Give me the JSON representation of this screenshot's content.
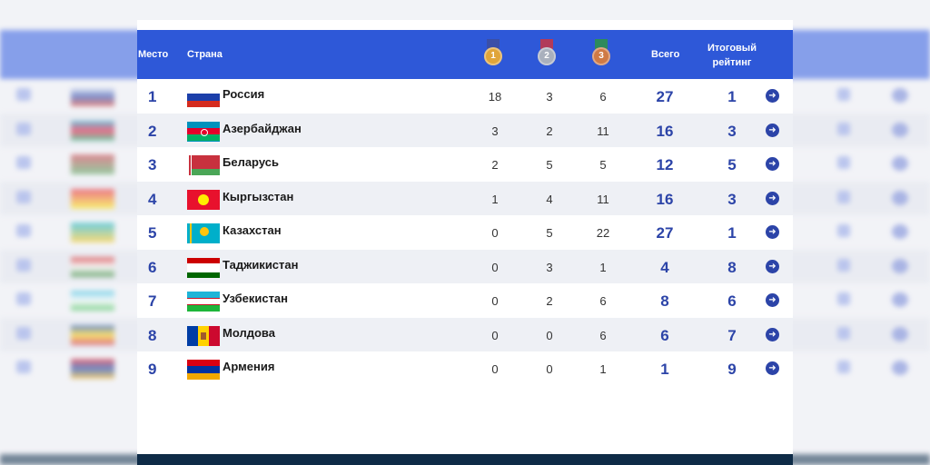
{
  "header": {
    "place": "Место",
    "country": "Страна",
    "total": "Всего",
    "rating": "Итоговый рейтинг",
    "medals": [
      {
        "label": "1",
        "color": "#e0a53a",
        "ribbon": "#3a4fa8"
      },
      {
        "label": "2",
        "color": "#a9b0bd",
        "ribbon": "#b13a5a"
      },
      {
        "label": "3",
        "color": "#cf7a45",
        "ribbon": "#2d8a5c"
      }
    ]
  },
  "rows": [
    {
      "place": "1",
      "country": "Россия",
      "gold": "18",
      "silver": "3",
      "bronze": "6",
      "total": "27",
      "rating": "1",
      "flag": "russia",
      "colors": [
        "#ffffff",
        "#1c3faa",
        "#d52b1e"
      ]
    },
    {
      "place": "2",
      "country": "Азербайджан",
      "gold": "3",
      "silver": "2",
      "bronze": "11",
      "total": "16",
      "rating": "3",
      "flag": "azerbaijan",
      "colors": [
        "#0092bc",
        "#e4002b",
        "#00af66"
      ]
    },
    {
      "place": "3",
      "country": "Беларусь",
      "gold": "2",
      "silver": "5",
      "bronze": "5",
      "total": "12",
      "rating": "5",
      "flag": "belarus",
      "colors": [
        "#c8313e",
        "#4aa657"
      ]
    },
    {
      "place": "4",
      "country": "Кыргызстан",
      "gold": "1",
      "silver": "4",
      "bronze": "11",
      "total": "16",
      "rating": "3",
      "flag": "kyrgyzstan",
      "colors": [
        "#e8112d",
        "#ffef00"
      ]
    },
    {
      "place": "5",
      "country": "Казахстан",
      "gold": "0",
      "silver": "5",
      "bronze": "22",
      "total": "27",
      "rating": "1",
      "flag": "kazakhstan",
      "colors": [
        "#00afca",
        "#fec50c"
      ]
    },
    {
      "place": "6",
      "country": "Таджикистан",
      "gold": "0",
      "silver": "3",
      "bronze": "1",
      "total": "4",
      "rating": "8",
      "flag": "tajikistan",
      "colors": [
        "#cc0000",
        "#ffffff",
        "#006600"
      ]
    },
    {
      "place": "7",
      "country": "Узбекистан",
      "gold": "0",
      "silver": "2",
      "bronze": "6",
      "total": "8",
      "rating": "6",
      "flag": "uzbekistan",
      "colors": [
        "#1eb5d8",
        "#ffffff",
        "#1eb53a"
      ]
    },
    {
      "place": "8",
      "country": "Молдова",
      "gold": "0",
      "silver": "0",
      "bronze": "6",
      "total": "6",
      "rating": "7",
      "flag": "moldova",
      "colors": [
        "#003da5",
        "#ffd200",
        "#cc092f"
      ]
    },
    {
      "place": "9",
      "country": "Армения",
      "gold": "0",
      "silver": "0",
      "bronze": "1",
      "total": "1",
      "rating": "9",
      "flag": "armenia",
      "colors": [
        "#d90012",
        "#0033a0",
        "#f2a800"
      ]
    }
  ]
}
